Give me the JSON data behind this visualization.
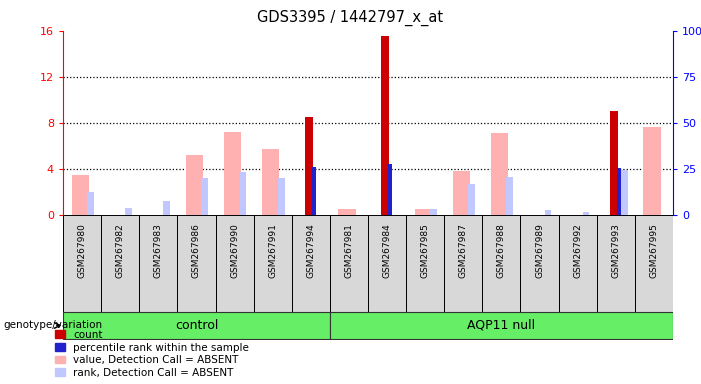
{
  "title": "GDS3395 / 1442797_x_at",
  "samples": [
    "GSM267980",
    "GSM267982",
    "GSM267983",
    "GSM267986",
    "GSM267990",
    "GSM267991",
    "GSM267994",
    "GSM267981",
    "GSM267984",
    "GSM267985",
    "GSM267987",
    "GSM267988",
    "GSM267989",
    "GSM267992",
    "GSM267993",
    "GSM267995"
  ],
  "n_control": 7,
  "n_total": 16,
  "count": [
    0,
    0,
    0,
    0,
    0,
    0,
    8.5,
    0,
    15.5,
    0,
    0,
    0,
    0,
    0,
    9.0,
    0
  ],
  "percentile_rank": [
    0,
    0,
    0,
    0,
    0,
    0,
    4.2,
    0,
    4.4,
    0,
    0,
    0,
    0,
    0,
    4.1,
    0
  ],
  "value_absent": [
    3.5,
    0,
    0,
    5.2,
    7.2,
    5.7,
    0,
    0.5,
    0,
    0.5,
    3.8,
    7.1,
    0,
    0,
    0,
    7.6
  ],
  "rank_absent": [
    2.0,
    0.6,
    1.2,
    3.2,
    3.7,
    3.2,
    0,
    0,
    0,
    0.5,
    2.7,
    3.3,
    0.4,
    0.3,
    3.9,
    0
  ],
  "ylim_left": [
    0,
    16
  ],
  "ylim_right": [
    0,
    100
  ],
  "yticks_left": [
    0,
    4,
    8,
    12,
    16
  ],
  "yticks_right": [
    0,
    25,
    50,
    75,
    100
  ],
  "ytick_labels_right": [
    "0",
    "25",
    "50",
    "75",
    "100%"
  ],
  "color_count": "#cc0000",
  "color_percentile": "#2222cc",
  "color_value_absent": "#ffb0b0",
  "color_rank_absent": "#c0c8ff",
  "background_plot": "#ffffff",
  "background_sample": "#d8d8d8",
  "background_group": "#66ee66",
  "group_label": "genotype/variation",
  "group_names": [
    "control",
    "AQP11 null"
  ],
  "legend_items": [
    "count",
    "percentile rank within the sample",
    "value, Detection Call = ABSENT",
    "rank, Detection Call = ABSENT"
  ]
}
